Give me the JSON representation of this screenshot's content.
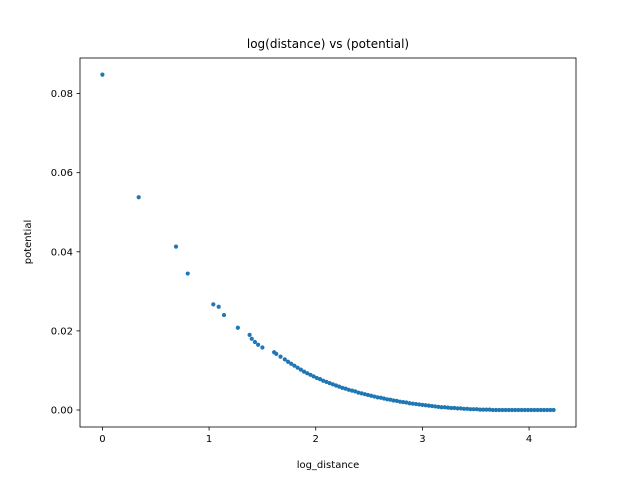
{
  "chart_data": {
    "type": "scatter",
    "title": "log(distance) vs (potential)",
    "xlabel": "log_distance",
    "ylabel": "potential",
    "xlim": [
      -0.21,
      4.44
    ],
    "ylim": [
      -0.0043,
      0.089
    ],
    "xticks": [
      0,
      1,
      2,
      3,
      4
    ],
    "xtick_labels": [
      "0",
      "1",
      "2",
      "3",
      "4"
    ],
    "yticks": [
      0.0,
      0.02,
      0.04,
      0.06,
      0.08
    ],
    "ytick_labels": [
      "0.00",
      "0.02",
      "0.04",
      "0.06",
      "0.08"
    ],
    "grid": false,
    "legend": "none",
    "series": [
      {
        "color": "#1f77b4",
        "x": [
          0.0,
          0.34,
          0.69,
          0.8,
          1.04,
          1.09,
          1.14,
          1.27,
          1.38,
          1.4,
          1.43,
          1.46,
          1.5,
          1.61,
          1.63,
          1.67,
          1.71,
          1.74,
          1.77,
          1.8,
          1.83,
          1.86,
          1.89,
          1.92,
          1.95,
          1.98,
          2.01,
          2.04,
          2.07,
          2.1,
          2.13,
          2.16,
          2.19,
          2.22,
          2.25,
          2.28,
          2.31,
          2.34,
          2.37,
          2.4,
          2.43,
          2.46,
          2.49,
          2.52,
          2.55,
          2.58,
          2.61,
          2.64,
          2.67,
          2.7,
          2.73,
          2.76,
          2.79,
          2.82,
          2.85,
          2.88,
          2.91,
          2.94,
          2.97,
          3.0,
          3.03,
          3.06,
          3.09,
          3.12,
          3.15,
          3.18,
          3.21,
          3.24,
          3.27,
          3.3,
          3.33,
          3.36,
          3.39,
          3.42,
          3.45,
          3.48,
          3.51,
          3.54,
          3.57,
          3.6,
          3.63,
          3.66,
          3.69,
          3.72,
          3.75,
          3.78,
          3.81,
          3.84,
          3.87,
          3.9,
          3.93,
          3.96,
          3.99,
          4.02,
          4.05,
          4.08,
          4.11,
          4.14,
          4.17,
          4.2,
          4.23
        ],
        "y": [
          0.0848,
          0.0538,
          0.0413,
          0.0345,
          0.0267,
          0.0261,
          0.024,
          0.0208,
          0.019,
          0.018,
          0.0172,
          0.0165,
          0.0158,
          0.0146,
          0.0142,
          0.0135,
          0.0128,
          0.0122,
          0.0117,
          0.0112,
          0.0107,
          0.0102,
          0.0097,
          0.0093,
          0.0089,
          0.0085,
          0.0081,
          0.0078,
          0.0074,
          0.0071,
          0.0068,
          0.0065,
          0.0062,
          0.0059,
          0.0056,
          0.0054,
          0.0051,
          0.0049,
          0.0047,
          0.0044,
          0.0042,
          0.004,
          0.0038,
          0.0036,
          0.0034,
          0.0032,
          0.0031,
          0.0029,
          0.0027,
          0.0026,
          0.0024,
          0.0023,
          0.0021,
          0.002,
          0.0019,
          0.0017,
          0.0016,
          0.0015,
          0.0014,
          0.0013,
          0.0012,
          0.0011,
          0.001,
          0.0009,
          0.0008,
          0.0007,
          0.0007,
          0.0006,
          0.0005,
          0.0005,
          0.0004,
          0.0004,
          0.0003,
          0.0003,
          0.0002,
          0.0002,
          0.0002,
          0.0001,
          0.0001,
          0.0001,
          0.0001,
          0.0,
          0.0,
          0.0,
          0.0,
          0.0,
          0.0,
          0.0,
          0.0,
          0.0,
          0.0,
          0.0,
          0.0,
          0.0,
          0.0,
          0.0,
          0.0,
          0.0,
          0.0,
          0.0,
          0.0
        ]
      }
    ]
  }
}
